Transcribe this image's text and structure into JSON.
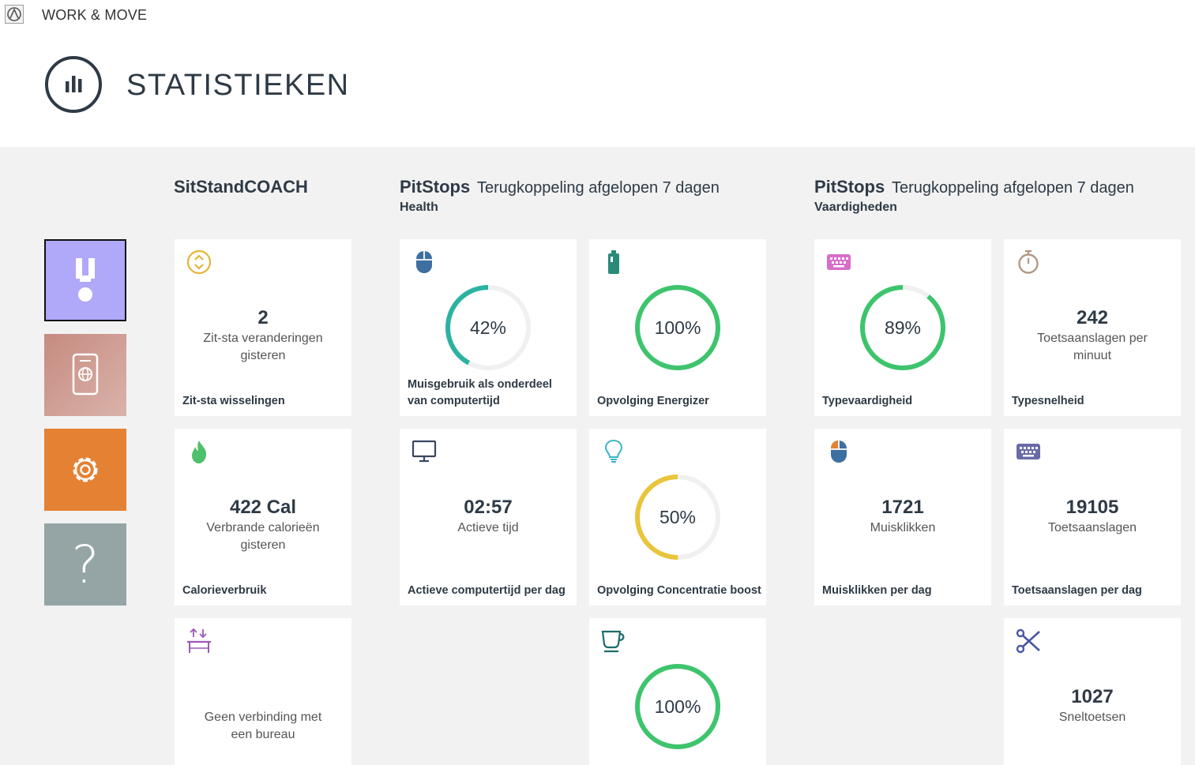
{
  "app": {
    "title": "WORK & MOVE"
  },
  "page": {
    "title": "STATISTIEKEN"
  },
  "nav": {
    "help_symbol": "?"
  },
  "colors": {
    "ring_green": "#3ec46d",
    "ring_teal": "#2bb3a0",
    "ring_yellow": "#e8c53a",
    "ring_track": "#f0f0f0"
  },
  "sections": {
    "sitstand": {
      "title": "SitStandCOACH"
    },
    "health": {
      "title": "PitStops",
      "subtitle": "Terugkoppeling afgelopen 7 dagen",
      "category": "Health"
    },
    "skills": {
      "title": "PitStops",
      "subtitle": "Terugkoppeling afgelopen 7 dagen",
      "category": "Vaardigheden"
    }
  },
  "cards": {
    "sitstand_changes": {
      "value": "2",
      "desc": "Zit-sta veranderingen gisteren",
      "label": "Zit-sta wisselingen",
      "icon": "updown-circle-icon"
    },
    "calories": {
      "value": "422 Cal",
      "desc": "Verbrande calorieën gisteren",
      "label": "Calorieverbruik",
      "icon": "flame-icon"
    },
    "desk": {
      "desc": "Geen verbinding met een bureau",
      "icon": "desk-height-icon"
    },
    "mouse_usage": {
      "percent": 42,
      "percent_text": "42%",
      "label": "Muisgebruik als onderdeel van computertijd",
      "icon": "mouse-icon"
    },
    "energizer": {
      "percent": 100,
      "percent_text": "100%",
      "label": "Opvolging Energizer",
      "icon": "battery-icon"
    },
    "active_time": {
      "value": "02:57",
      "desc": "Actieve tijd",
      "label": "Actieve computertijd per dag",
      "icon": "monitor-icon"
    },
    "concentration": {
      "percent": 50,
      "percent_text": "50%",
      "label": "Opvolging Concentratie boost",
      "icon": "lightbulb-icon"
    },
    "coffee": {
      "percent": 100,
      "percent_text": "100%",
      "icon": "cup-icon"
    },
    "typing_skill": {
      "percent": 89,
      "percent_text": "89%",
      "label": "Typevaardigheid",
      "icon": "keyboard-icon"
    },
    "typing_speed": {
      "value": "242",
      "desc": "Toetsaanslagen per minuut",
      "label": "Typesnelheid",
      "icon": "stopwatch-icon"
    },
    "mouse_clicks": {
      "value": "1721",
      "desc": "Muisklikken",
      "label": "Muisklikken per dag",
      "icon": "mouse-icon"
    },
    "keystrokes": {
      "value": "19105",
      "desc": "Toetsaanslagen",
      "label": "Toetsaanslagen per dag",
      "icon": "keyboard-icon"
    },
    "shortcuts": {
      "value": "1027",
      "desc": "Sneltoetsen",
      "icon": "scissors-icon"
    }
  }
}
